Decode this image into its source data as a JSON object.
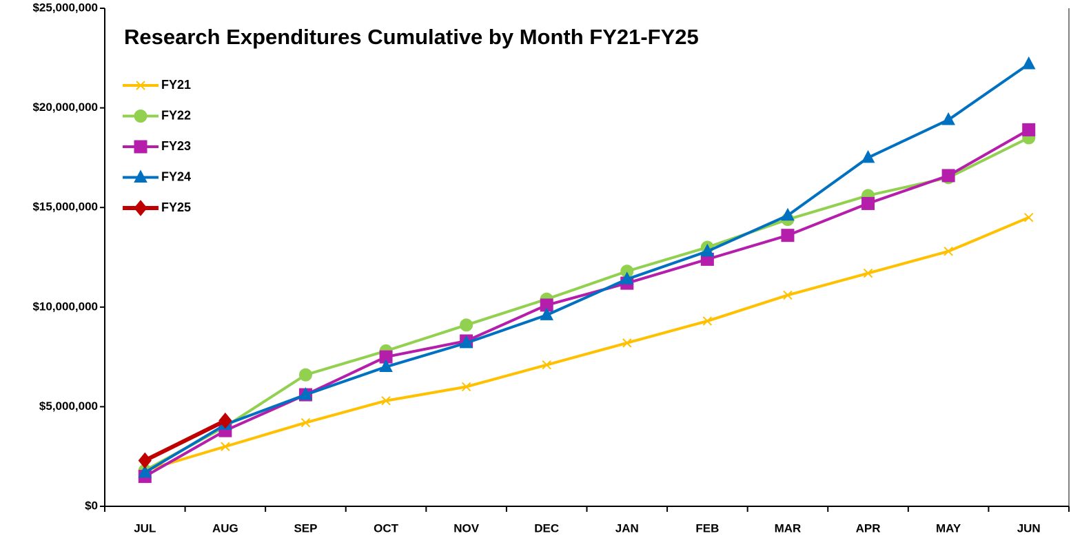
{
  "chart_data": {
    "type": "line",
    "title": "Research Expenditures Cumulative by Month FY21-FY25",
    "categories": [
      "JUL",
      "AUG",
      "SEP",
      "OCT",
      "NOV",
      "DEC",
      "JAN",
      "FEB",
      "MAR",
      "APR",
      "MAY",
      "JUN"
    ],
    "series": [
      {
        "name": "FY21",
        "color": "#ffc000",
        "marker": "x",
        "values": [
          1800000,
          3000000,
          4200000,
          5300000,
          6000000,
          7100000,
          8200000,
          9300000,
          10600000,
          11700000,
          12800000,
          14500000
        ]
      },
      {
        "name": "FY22",
        "color": "#92d050",
        "marker": "circle",
        "values": [
          1800000,
          4000000,
          6600000,
          7800000,
          9100000,
          10400000,
          11800000,
          13000000,
          14400000,
          15600000,
          16500000,
          18500000
        ]
      },
      {
        "name": "FY23",
        "color": "#b41eaa",
        "marker": "square",
        "values": [
          1500000,
          3800000,
          5600000,
          7500000,
          8300000,
          10100000,
          11200000,
          12400000,
          13600000,
          15200000,
          16600000,
          18900000
        ]
      },
      {
        "name": "FY24",
        "color": "#0070c0",
        "marker": "triangle",
        "values": [
          1700000,
          4100000,
          5600000,
          7000000,
          8200000,
          9600000,
          11400000,
          12800000,
          14600000,
          17500000,
          19400000,
          22200000
        ]
      },
      {
        "name": "FY25",
        "color": "#c00000",
        "marker": "diamond",
        "values": [
          2300000,
          4300000,
          null,
          null,
          null,
          null,
          null,
          null,
          null,
          null,
          null,
          null
        ]
      }
    ],
    "ylim": [
      0,
      25000000
    ],
    "yticks": [
      {
        "value": 0,
        "label": "$0"
      },
      {
        "value": 5000000,
        "label": "$5,000,000"
      },
      {
        "value": 10000000,
        "label": "$10,000,000"
      },
      {
        "value": 15000000,
        "label": "$15,000,000"
      },
      {
        "value": 20000000,
        "label": "$20,000,000"
      },
      {
        "value": 25000000,
        "label": "$25,000,000"
      }
    ],
    "legend": "top-left",
    "grid": false
  }
}
